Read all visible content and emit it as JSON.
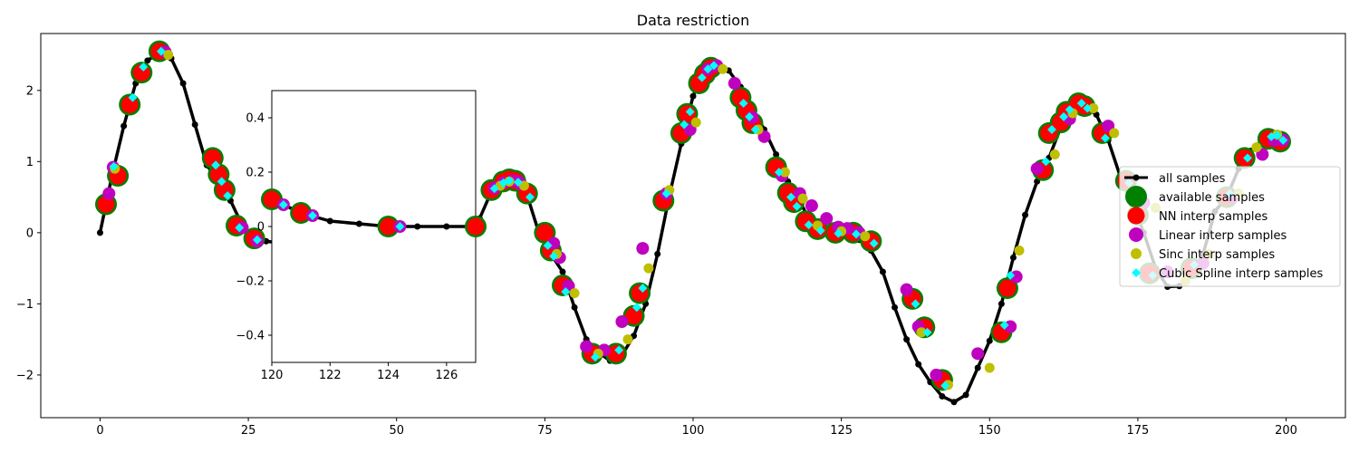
{
  "chart_data": [
    {
      "type": "line",
      "title": "Data restriction",
      "xlabel": "",
      "ylabel": "",
      "xlim": [
        -10,
        210
      ],
      "ylim": [
        -2.6,
        2.8
      ],
      "xticks": [
        0,
        25,
        50,
        75,
        100,
        125,
        150,
        175,
        200
      ],
      "yticks": [
        -2,
        -1,
        0,
        1,
        2
      ],
      "grid": false,
      "legend": {
        "placement": "right",
        "entries": [
          "all samples",
          "available samples",
          "NN interp samples",
          "Linear interp samples",
          "Sinc interp samples",
          "Cubic Spline interp samples"
        ]
      },
      "colors": {
        "all": "#000000",
        "available": "#008000",
        "nn": "#ff0000",
        "linear": "#bf00bf",
        "sinc": "#bfbf00",
        "cubic": "#00ffff"
      },
      "series": [
        {
          "name": "all samples",
          "x": [
            0,
            2,
            4,
            6,
            8,
            10,
            12,
            14,
            16,
            18,
            20,
            22,
            24,
            26,
            28,
            30,
            32,
            34,
            36,
            38,
            40,
            42,
            44,
            46,
            48,
            50,
            52,
            54,
            56,
            58,
            60,
            62,
            64,
            66,
            68,
            70,
            72,
            74,
            76,
            78,
            80,
            82,
            84,
            86,
            88,
            90,
            92,
            94,
            96,
            98,
            100,
            102,
            104,
            106,
            108,
            110,
            112,
            114,
            116,
            118,
            120,
            122,
            124,
            126,
            128,
            130,
            132,
            134,
            136,
            138,
            140,
            142,
            144,
            146,
            148,
            150,
            152,
            154,
            156,
            158,
            160,
            162,
            164,
            166,
            168,
            170,
            172,
            174,
            176,
            178,
            180,
            182,
            184,
            186,
            188,
            190,
            192,
            194,
            196,
            198,
            200
          ],
          "y": [
            0.0,
            0.8,
            1.5,
            2.1,
            2.42,
            2.53,
            2.45,
            2.1,
            1.52,
            0.95,
            0.72,
            0.45,
            0.1,
            -0.08,
            -0.12,
            -0.14,
            -0.1,
            -0.05,
            0.0,
            0.02,
            0.03,
            0.05,
            0.1,
            0.15,
            0.15,
            0.12,
            0.09,
            0.06,
            0.05,
            0.04,
            0.03,
            0.05,
            0.2,
            0.58,
            0.72,
            0.7,
            0.53,
            0.0,
            -0.3,
            -0.55,
            -1.05,
            -1.5,
            -1.68,
            -1.8,
            -1.72,
            -1.45,
            -1.0,
            -0.3,
            0.52,
            1.25,
            1.92,
            2.3,
            2.38,
            2.28,
            2.05,
            1.75,
            1.45,
            1.1,
            0.72,
            0.45,
            0.1,
            -0.02,
            -0.02,
            -0.03,
            -0.1,
            -0.25,
            -0.55,
            -1.05,
            -1.5,
            -1.85,
            -2.1,
            -2.3,
            -2.38,
            -2.28,
            -1.9,
            -1.52,
            -1.0,
            -0.35,
            0.25,
            0.72,
            1.05,
            1.48,
            1.72,
            1.8,
            1.66,
            1.3,
            0.8,
            0.4,
            0.0,
            -0.5,
            -0.76,
            -0.75,
            -0.6,
            -0.3,
            0.3,
            0.5,
            0.9,
            1.15,
            1.3,
            1.33,
            1.32
          ]
        },
        {
          "name": "available samples",
          "x": [
            1,
            3,
            5,
            7,
            10,
            19,
            20,
            21,
            23,
            26,
            66,
            68,
            69,
            70,
            72,
            75,
            76,
            78,
            83,
            87,
            90,
            91,
            95,
            98,
            99,
            101,
            102,
            103,
            108,
            109,
            110,
            114,
            116,
            117,
            119,
            121,
            124,
            127,
            130,
            137,
            139,
            142,
            152,
            153,
            159,
            160,
            162,
            163,
            165,
            166,
            169,
            173,
            175,
            177,
            184,
            190,
            193,
            197,
            199
          ],
          "y": [
            0.4,
            0.8,
            1.8,
            2.25,
            2.55,
            1.05,
            0.82,
            0.6,
            0.1,
            -0.08,
            0.6,
            0.72,
            0.75,
            0.73,
            0.55,
            0.0,
            -0.25,
            -0.74,
            -1.7,
            -1.7,
            -1.17,
            -0.85,
            0.45,
            1.4,
            1.67,
            2.1,
            2.23,
            2.32,
            1.9,
            1.72,
            1.54,
            0.92,
            0.56,
            0.43,
            0.16,
            0.05,
            0.0,
            0.0,
            -0.12,
            -0.93,
            -1.33,
            -2.07,
            -1.4,
            -0.78,
            0.88,
            1.4,
            1.55,
            1.7,
            1.82,
            1.78,
            1.4,
            0.73,
            0.25,
            -0.57,
            -0.5,
            0.5,
            1.05,
            1.32,
            1.28
          ]
        },
        {
          "name": "Linear interp samples",
          "x": [
            1.5,
            2.2,
            11,
            24,
            26.5,
            36,
            40,
            66.5,
            68,
            69.5,
            70.5,
            71,
            76.5,
            77.5,
            79,
            82,
            85,
            88,
            91.5,
            95.5,
            99.5,
            102.5,
            104,
            107,
            110,
            112,
            115,
            118,
            120,
            122.5,
            124.5,
            126,
            128,
            136,
            138,
            141,
            148,
            153.5,
            154.5,
            158,
            163.5,
            170,
            176,
            180,
            186,
            191,
            196,
            198,
            198.5,
            199.5
          ],
          "y": [
            0.55,
            0.92,
            2.54,
            0.07,
            -0.12,
            -0.13,
            0.0,
            0.63,
            0.7,
            0.73,
            0.72,
            0.68,
            -0.15,
            -0.35,
            -0.75,
            -1.6,
            -1.65,
            -1.25,
            -0.22,
            0.55,
            1.45,
            2.3,
            2.35,
            2.1,
            1.62,
            1.35,
            0.8,
            0.55,
            0.38,
            0.2,
            0.08,
            0.06,
            0.0,
            -0.8,
            -1.32,
            -2.0,
            -1.7,
            -1.32,
            -0.62,
            0.9,
            1.6,
            1.5,
            0.42,
            -0.55,
            -0.43,
            0.5,
            1.1,
            1.3,
            1.35,
            1.3
          ]
        },
        {
          "name": "Sinc interp samples",
          "x": [
            2.5,
            11.5,
            37,
            67.5,
            69,
            71.5,
            77,
            80,
            84,
            89,
            92.5,
            96,
            100.5,
            105,
            111,
            115.5,
            118.5,
            121,
            125,
            129,
            138.5,
            143,
            150,
            155,
            161,
            164,
            167.5,
            171,
            178,
            183,
            187,
            192,
            195,
            198.5
          ],
          "y": [
            0.9,
            2.5,
            -0.12,
            0.66,
            0.72,
            0.66,
            -0.3,
            -0.85,
            -1.7,
            -1.5,
            -0.5,
            0.6,
            1.55,
            2.3,
            1.45,
            0.85,
            0.48,
            0.1,
            0.02,
            -0.05,
            -1.4,
            -2.14,
            -1.9,
            -0.25,
            1.1,
            1.68,
            1.75,
            1.4,
            0.35,
            -0.68,
            -0.3,
            0.55,
            1.2,
            1.38
          ]
        },
        {
          "name": "Cubic Spline interp samples",
          "x": [
            2.3,
            5.5,
            7.3,
            10.3,
            19.5,
            20.5,
            21.5,
            23.5,
            26.5,
            66.5,
            68,
            69,
            70.5,
            72.5,
            75.5,
            76.5,
            78.5,
            83.5,
            87.5,
            90.5,
            91.5,
            95.5,
            98.5,
            99.5,
            101.5,
            102.5,
            103.5,
            108.5,
            109.5,
            110.5,
            114.5,
            116.5,
            117.5,
            119.5,
            121.5,
            124.5,
            127.5,
            130.5,
            137.5,
            139.5,
            142.5,
            152.5,
            153.5,
            159.5,
            160.5,
            162.5,
            163.5,
            165.5,
            166.5,
            169.5,
            173.5,
            175.5,
            177.5,
            184.5,
            190.5,
            193.5,
            197.5,
            198.5,
            199.5
          ],
          "y": [
            0.93,
            1.9,
            2.33,
            2.55,
            0.95,
            0.72,
            0.52,
            0.07,
            -0.1,
            0.62,
            0.7,
            0.73,
            0.71,
            0.5,
            -0.18,
            -0.33,
            -0.83,
            -1.75,
            -1.65,
            -1.05,
            -0.78,
            0.55,
            1.52,
            1.7,
            2.18,
            2.3,
            2.35,
            1.82,
            1.63,
            1.45,
            0.85,
            0.5,
            0.37,
            0.11,
            0.03,
            -0.01,
            -0.02,
            -0.15,
            -1.0,
            -1.4,
            -2.15,
            -1.3,
            -0.6,
            1.0,
            1.45,
            1.63,
            1.73,
            1.82,
            1.75,
            1.33,
            0.7,
            0.2,
            -0.6,
            -0.45,
            0.55,
            1.05,
            1.35,
            1.37,
            1.3
          ]
        }
      ]
    },
    {
      "type": "line",
      "title": "",
      "xlim": [
        120,
        127
      ],
      "ylim": [
        -0.5,
        0.5
      ],
      "xticks": [
        120,
        122,
        124,
        126
      ],
      "yticks": [
        -0.4,
        -0.2,
        0.0,
        0.2,
        0.4
      ],
      "grid": false,
      "series": [
        {
          "name": "all samples",
          "x": [
            120,
            121,
            122,
            123,
            124,
            125,
            126,
            127
          ],
          "y": [
            0.1,
            0.05,
            0.02,
            0.01,
            0.0,
            0.0,
            0.0,
            0.0
          ]
        },
        {
          "name": "available samples",
          "x": [
            120,
            121,
            124,
            127
          ],
          "y": [
            0.1,
            0.05,
            0.0,
            0.0
          ]
        },
        {
          "name": "Linear interp samples",
          "x": [
            120.4,
            121.4,
            124.4
          ],
          "y": [
            0.08,
            0.04,
            0.0
          ]
        },
        {
          "name": "Cubic Spline interp samples",
          "x": [
            120.4,
            121.4,
            124.4
          ],
          "y": [
            0.08,
            0.04,
            0.0
          ]
        }
      ]
    }
  ]
}
